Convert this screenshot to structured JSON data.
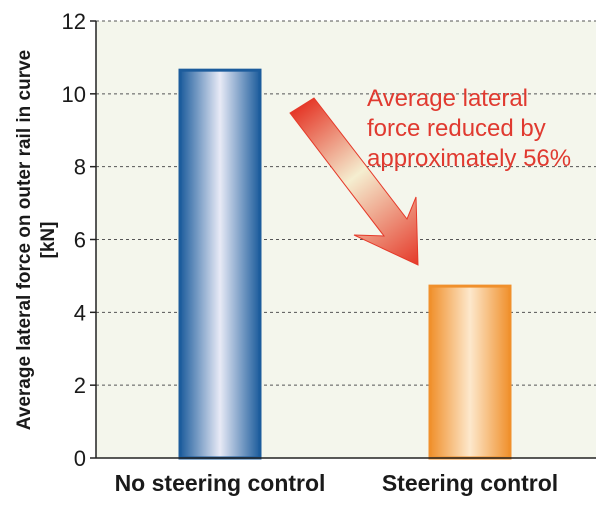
{
  "chart_data": {
    "type": "bar",
    "categories": [
      "No steering control",
      "Steering control"
    ],
    "values": [
      10.65,
      4.72
    ],
    "ylabel_lines": [
      "Average lateral force on outer rail in curve",
      "[kN]"
    ],
    "xlabel": "",
    "ylim": [
      0,
      12
    ],
    "yticks": [
      0,
      2,
      4,
      6,
      8,
      10,
      12
    ],
    "grid": true,
    "annotation_lines": [
      "Average lateral",
      "force reduced by",
      "approximately 56%"
    ]
  },
  "colors": {
    "plot_bg": "#f4f6ec",
    "grid": "#555555",
    "bar1_edge": "#1c5c9c",
    "bar1_center": "#e8eaf6",
    "bar2_edge": "#f0902c",
    "bar2_center": "#fde8cc",
    "annotation_text": "#e03a30",
    "arrow_dark": "#e53a2a",
    "arrow_light": "#f5eed0"
  }
}
